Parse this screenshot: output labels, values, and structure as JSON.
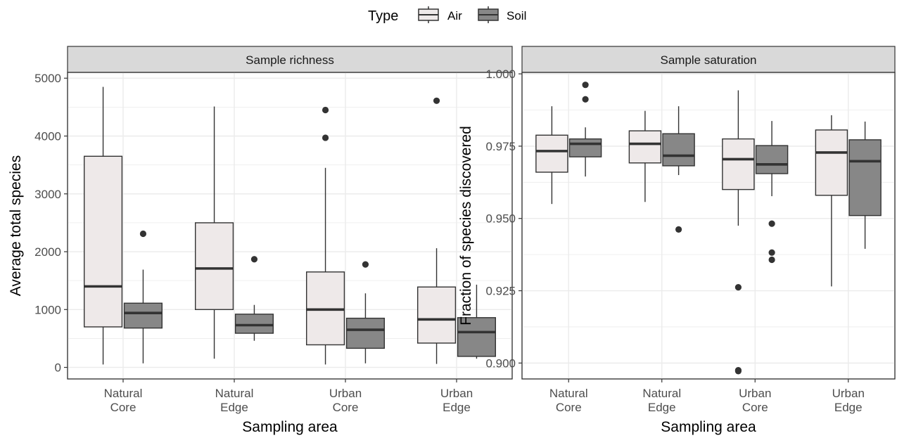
{
  "legend": {
    "title": "Type",
    "position": "top",
    "items": [
      {
        "label": "Air",
        "color": "#EEE9E9"
      },
      {
        "label": "Soil",
        "color": "#878787"
      }
    ]
  },
  "colors": {
    "air_fill": "#EEE9E9",
    "soil_fill": "#878787",
    "strip_bg": "#D9D9D9",
    "grid": "#EBEBEB",
    "line": "#333333"
  },
  "chart_data": [
    {
      "type": "box",
      "title": "Sample richness",
      "xlabel": "Sampling area",
      "ylabel": "Average total species",
      "categories": [
        "Natural\nCore",
        "Natural\nEdge",
        "Urban\nCore",
        "Urban\nEdge"
      ],
      "ylim": [
        -200,
        5100
      ],
      "yticks": [
        0,
        1000,
        2000,
        3000,
        4000,
        5000
      ],
      "ytick_labels": [
        "0",
        "1000",
        "2000",
        "3000",
        "4000",
        "5000"
      ],
      "grid": true,
      "series": [
        {
          "name": "Air",
          "boxes": [
            {
              "whisker_low": 50,
              "q1": 700,
              "median": 1400,
              "q3": 3650,
              "whisker_high": 4850,
              "outliers": []
            },
            {
              "whisker_low": 150,
              "q1": 1000,
              "median": 1710,
              "q3": 2500,
              "whisker_high": 4510,
              "outliers": []
            },
            {
              "whisker_low": 50,
              "q1": 390,
              "median": 1000,
              "q3": 1650,
              "whisker_high": 3450,
              "outliers": [
                4450,
                3970
              ]
            },
            {
              "whisker_low": 60,
              "q1": 420,
              "median": 830,
              "q3": 1390,
              "whisker_high": 2060,
              "outliers": [
                4610
              ]
            }
          ]
        },
        {
          "name": "Soil",
          "boxes": [
            {
              "whisker_low": 70,
              "q1": 680,
              "median": 940,
              "q3": 1110,
              "whisker_high": 1690,
              "outliers": [
                2310
              ]
            },
            {
              "whisker_low": 460,
              "q1": 590,
              "median": 730,
              "q3": 920,
              "whisker_high": 1080,
              "outliers": [
                1870
              ]
            },
            {
              "whisker_low": 70,
              "q1": 330,
              "median": 650,
              "q3": 850,
              "whisker_high": 1280,
              "outliers": [
                1780
              ]
            },
            {
              "whisker_low": 150,
              "q1": 190,
              "median": 610,
              "q3": 860,
              "whisker_high": 1430,
              "outliers": []
            }
          ]
        }
      ]
    },
    {
      "type": "box",
      "title": "Sample saturation",
      "xlabel": "Sampling area",
      "ylabel": "Fraction of species discovered",
      "categories": [
        "Natural\nCore",
        "Natural\nEdge",
        "Urban\nCore",
        "Urban\nEdge"
      ],
      "ylim": [
        0.8945,
        1.0005
      ],
      "yticks": [
        0.9,
        0.925,
        0.95,
        0.975,
        1.0
      ],
      "ytick_labels": [
        "0.900",
        "0.925",
        "0.950",
        "0.975",
        "1.000"
      ],
      "grid": true,
      "series": [
        {
          "name": "Air",
          "boxes": [
            {
              "whisker_low": 0.955,
              "q1": 0.966,
              "median": 0.9733,
              "q3": 0.9788,
              "whisker_high": 0.9888,
              "outliers": []
            },
            {
              "whisker_low": 0.9557,
              "q1": 0.9692,
              "median": 0.9758,
              "q3": 0.9803,
              "whisker_high": 0.9872,
              "outliers": []
            },
            {
              "whisker_low": 0.9475,
              "q1": 0.96,
              "median": 0.9705,
              "q3": 0.9775,
              "whisker_high": 0.9943,
              "outliers": [
                0.9262,
                0.8975,
                0.8972
              ]
            },
            {
              "whisker_low": 0.9265,
              "q1": 0.958,
              "median": 0.9728,
              "q3": 0.9806,
              "whisker_high": 0.9857,
              "outliers": []
            }
          ]
        },
        {
          "name": "Soil",
          "boxes": [
            {
              "whisker_low": 0.9645,
              "q1": 0.9713,
              "median": 0.9758,
              "q3": 0.9775,
              "whisker_high": 0.9815,
              "outliers": [
                0.9962,
                0.9912
              ]
            },
            {
              "whisker_low": 0.965,
              "q1": 0.9682,
              "median": 0.9717,
              "q3": 0.9793,
              "whisker_high": 0.9888,
              "outliers": [
                0.9462
              ]
            },
            {
              "whisker_low": 0.9577,
              "q1": 0.9655,
              "median": 0.9687,
              "q3": 0.9752,
              "whisker_high": 0.9837,
              "outliers": [
                0.9482,
                0.9382,
                0.9357
              ]
            },
            {
              "whisker_low": 0.9395,
              "q1": 0.951,
              "median": 0.9698,
              "q3": 0.9772,
              "whisker_high": 0.9835,
              "outliers": []
            }
          ]
        }
      ]
    }
  ]
}
